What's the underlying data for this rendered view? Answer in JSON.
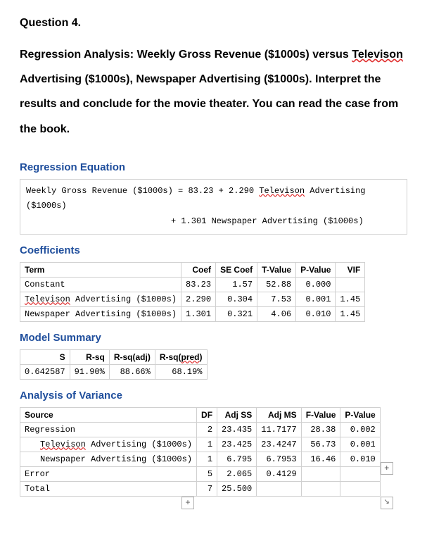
{
  "question": {
    "number": "Question 4.",
    "body_parts": [
      {
        "t": "Regression Analysis: Weekly Gross Revenue ($1000s) versus "
      },
      {
        "t": "Televison",
        "sq": true
      },
      {
        "t": " Advertising ($1000s), Newspaper Advertising "
      },
      {
        "t": "($1000s). Interpret the results and conclude for the movie "
      },
      {
        "t": "theater. You can read the case from the book."
      }
    ]
  },
  "sections": {
    "eq": "Regression Equation",
    "coef": "Coefficients",
    "model": "Model Summary",
    "anova": "Analysis of Variance"
  },
  "equation": {
    "label": "Weekly Gross Revenue ($1000s)",
    "eq1_pre": " = 83.23 + 2.290 ",
    "eq1_sq": "Televison",
    "eq1_post": " Advertising ($1000s)",
    "eq2": "+ 1.301 Newspaper Advertising ($1000s)"
  },
  "coef_table": {
    "headers": [
      "Term",
      "Coef",
      "SE Coef",
      "T-Value",
      "P-Value",
      "VIF"
    ],
    "rows": [
      {
        "term": "Constant",
        "sq": false,
        "coef": "83.23",
        "se": "1.57",
        "t": "52.88",
        "p": "0.000",
        "vif": ""
      },
      {
        "term": "Televison Advertising ($1000s)",
        "sq": true,
        "coef": "2.290",
        "se": "0.304",
        "t": "7.53",
        "p": "0.001",
        "vif": "1.45"
      },
      {
        "term": "Newspaper Advertising ($1000s)",
        "sq": false,
        "coef": "1.301",
        "se": "0.321",
        "t": "4.06",
        "p": "0.010",
        "vif": "1.45"
      }
    ]
  },
  "model_table": {
    "headers": [
      "S",
      "R-sq",
      "R-sq(adj)",
      "R-sq(pred)"
    ],
    "sq_idx": 3,
    "row": [
      "0.642587",
      "91.90%",
      "88.66%",
      "68.19%"
    ]
  },
  "anova_table": {
    "headers": [
      "Source",
      "DF",
      "Adj SS",
      "Adj MS",
      "F-Value",
      "P-Value"
    ],
    "rows": [
      {
        "src": "Regression",
        "indent": false,
        "sq": false,
        "df": "2",
        "ss": "23.435",
        "ms": "11.7177",
        "f": "28.38",
        "p": "0.002"
      },
      {
        "src": "Televison Advertising ($1000s)",
        "indent": true,
        "sq": true,
        "df": "1",
        "ss": "23.425",
        "ms": "23.4247",
        "f": "56.73",
        "p": "0.001"
      },
      {
        "src": "Newspaper Advertising ($1000s)",
        "indent": true,
        "sq": false,
        "df": "1",
        "ss": "6.795",
        "ms": "6.7953",
        "f": "16.46",
        "p": "0.010"
      },
      {
        "src": "Error",
        "indent": false,
        "sq": false,
        "df": "5",
        "ss": "2.065",
        "ms": "0.4129",
        "f": "",
        "p": ""
      },
      {
        "src": "Total",
        "indent": false,
        "sq": false,
        "df": "7",
        "ss": "25.500",
        "ms": "",
        "f": "",
        "p": ""
      }
    ]
  },
  "glyphs": {
    "plus": "+",
    "arrow": "↘",
    "move": "✥"
  }
}
